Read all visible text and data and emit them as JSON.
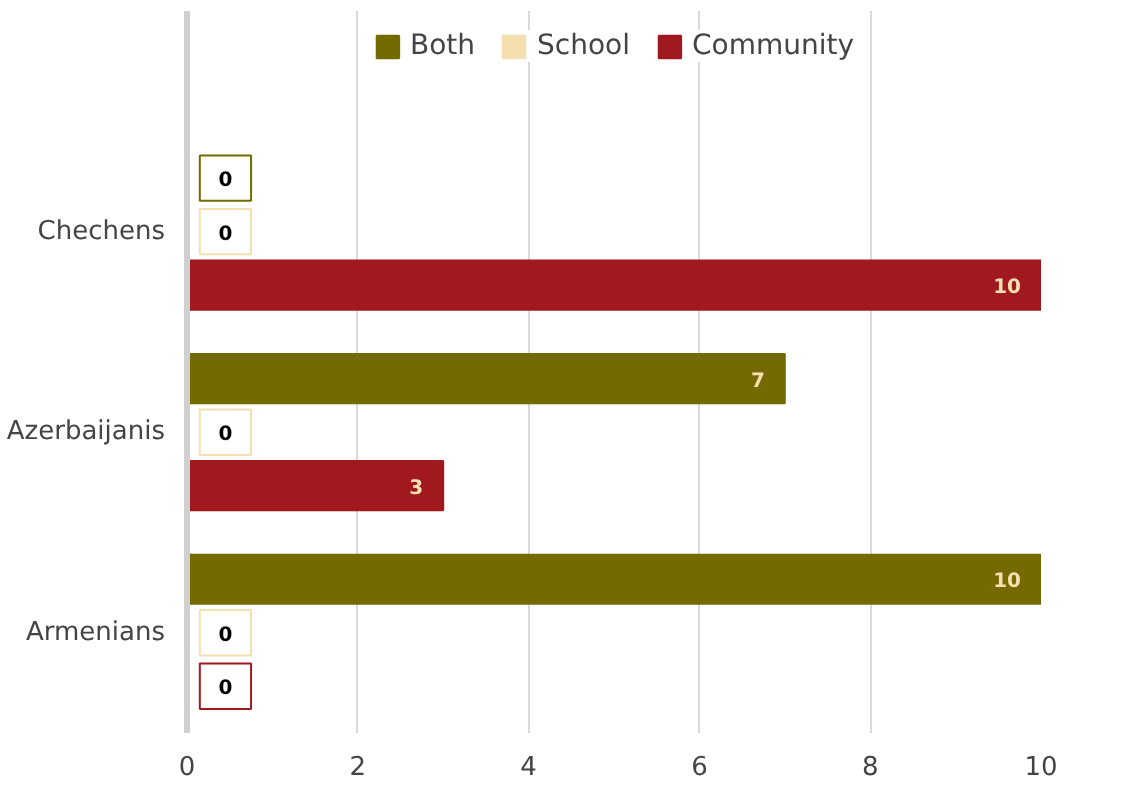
{
  "chart_data": {
    "type": "bar",
    "orientation": "horizontal",
    "categories": [
      "Chechens",
      "Azerbaijanis",
      "Armenians"
    ],
    "series": [
      {
        "name": "Both",
        "color": "#736a00",
        "values": [
          0,
          7,
          10
        ]
      },
      {
        "name": "School",
        "color": "#f3dfb0",
        "values": [
          0,
          0,
          0
        ]
      },
      {
        "name": "Community",
        "color": "#a0191e",
        "values": [
          10,
          3,
          0
        ]
      }
    ],
    "xlim": [
      0,
      10
    ],
    "xticks": [
      0,
      2,
      4,
      6,
      8,
      10
    ],
    "grid": "x",
    "legend": "top",
    "data_labels": true
  }
}
